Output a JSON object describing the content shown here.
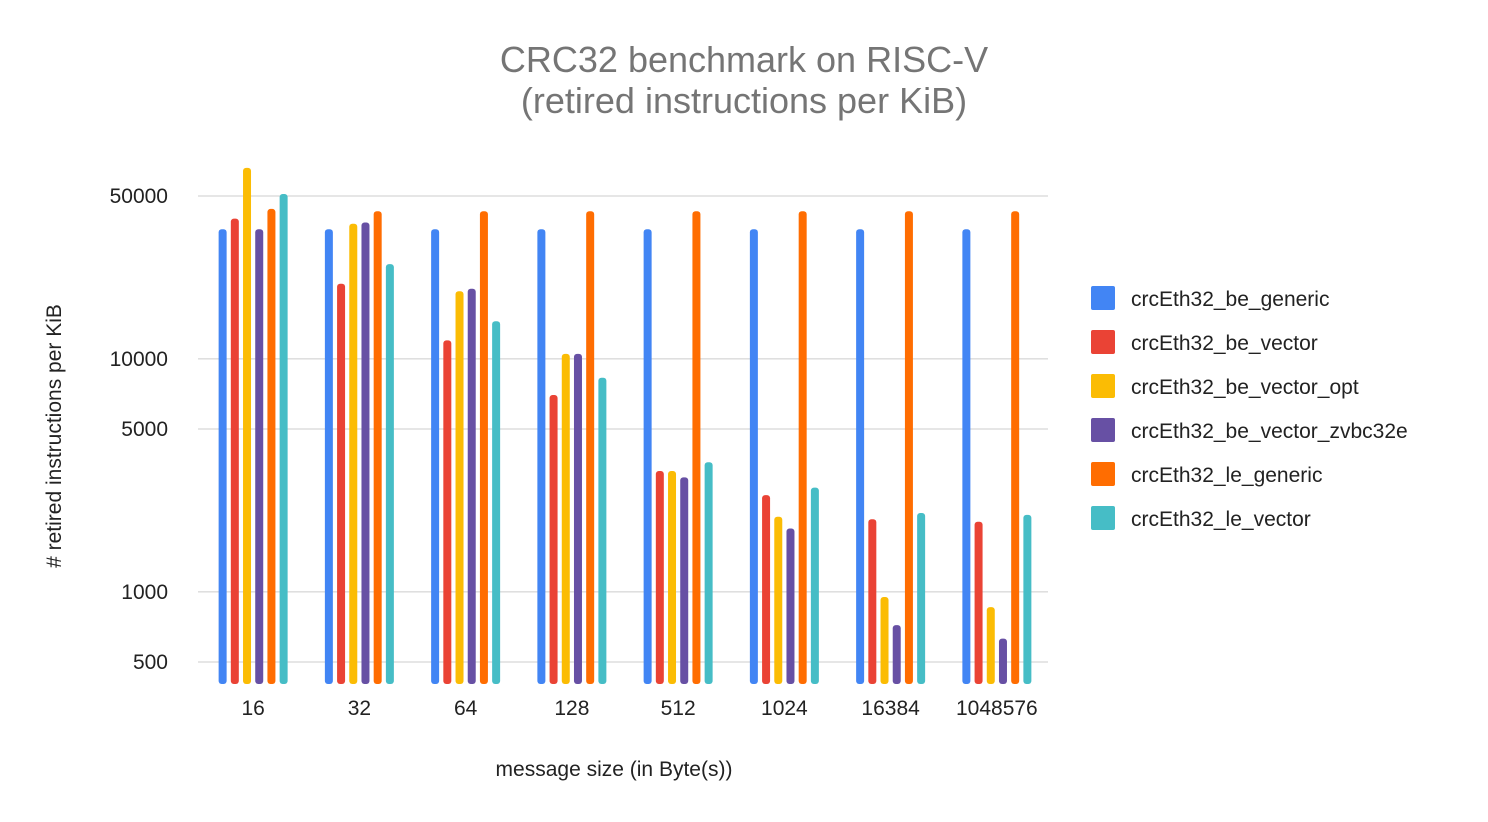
{
  "chart_data": {
    "type": "bar",
    "title_lines": [
      "CRC32 benchmark on RISC-V",
      "(retired instructions per KiB)"
    ],
    "xlabel": "message size (in Byte(s))",
    "ylabel": "# retired instructions per KiB",
    "y_scale": "log",
    "ylim": [
      400,
      75000
    ],
    "y_ticks": [
      500,
      1000,
      5000,
      10000,
      50000
    ],
    "grid": true,
    "legend_position": "right",
    "categories": [
      "16",
      "32",
      "64",
      "128",
      "512",
      "1024",
      "16384",
      "1048576"
    ],
    "series": [
      {
        "name": "crcEth32_be_generic",
        "color": "#4285f4",
        "values": [
          36000,
          36000,
          36000,
          36000,
          36000,
          36000,
          36000,
          36000
        ]
      },
      {
        "name": "crcEth32_be_vector",
        "color": "#ea4335",
        "values": [
          40000,
          21000,
          12000,
          7000,
          3300,
          2600,
          2050,
          2000
        ]
      },
      {
        "name": "crcEth32_be_vector_opt",
        "color": "#fbbc04",
        "values": [
          66000,
          38000,
          19500,
          10500,
          3300,
          2100,
          950,
          860
        ]
      },
      {
        "name": "crcEth32_be_vector_zvbc32e",
        "color": "#6750a4",
        "values": [
          36000,
          38500,
          20000,
          10500,
          3100,
          1870,
          720,
          630
        ]
      },
      {
        "name": "crcEth32_le_generic",
        "color": "#ff6d01",
        "values": [
          44000,
          43000,
          43000,
          43000,
          43000,
          43000,
          43000,
          43000
        ]
      },
      {
        "name": "crcEth32_le_vector",
        "color": "#46bdc6",
        "values": [
          51000,
          25500,
          14500,
          8300,
          3600,
          2800,
          2180,
          2140
        ]
      }
    ]
  }
}
